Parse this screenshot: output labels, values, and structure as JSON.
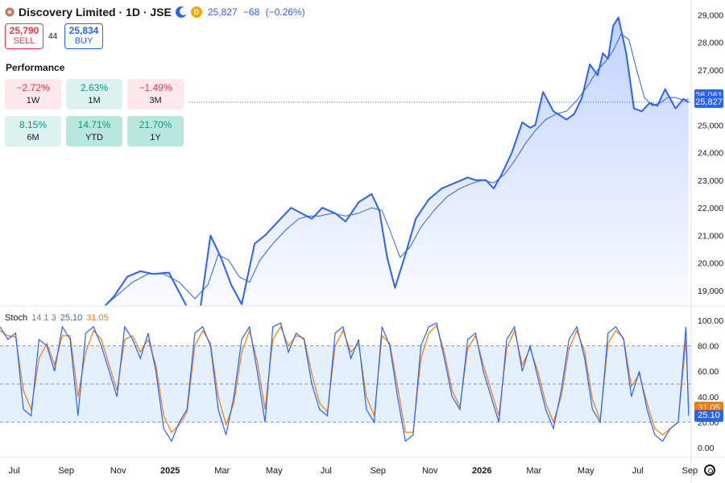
{
  "header": {
    "title": "Discovery Limited · 1D · JSE",
    "last": "25,827",
    "change": "−68",
    "change_pct": "(−0.26%)",
    "session_icon": "moon-icon",
    "dividend_badge": "D"
  },
  "trade": {
    "sell_price": "25,790",
    "sell_label": "SELL",
    "spread": "44",
    "buy_price": "25,834",
    "buy_label": "BUY"
  },
  "performance": {
    "title": "Performance",
    "items": [
      {
        "value": "−2.72%",
        "period": "1W",
        "tone": "neg"
      },
      {
        "value": "2.63%",
        "period": "1M",
        "tone": "pos"
      },
      {
        "value": "−1.49%",
        "period": "3M",
        "tone": "neg"
      },
      {
        "value": "8.15%",
        "period": "6M",
        "tone": "pos"
      },
      {
        "value": "14.71%",
        "period": "YTD",
        "tone": "pos2"
      },
      {
        "value": "21.70%",
        "period": "1Y",
        "tone": "pos2"
      }
    ]
  },
  "stoch": {
    "name": "Stoch",
    "params": "14 1 3",
    "k_value": "25.10",
    "d_value": "31.05"
  },
  "price_tags": {
    "upper": "26,061",
    "last": "25,827"
  },
  "colors": {
    "price_line": "#2962ff",
    "stoch_d": "#f57c00",
    "stoch_k": "#2962ff",
    "band": "#e3f0fd"
  },
  "chart_data": [
    {
      "type": "line",
      "y_ticks": [
        "19,000",
        "20,000",
        "21,000",
        "22,000",
        "23,000",
        "24,000",
        "25,000",
        "26,000",
        "27,000",
        "28,000",
        "29,000"
      ],
      "x_ticks": [
        "Jul",
        "Sep",
        "Nov",
        "2025",
        "Mar",
        "May",
        "Jul",
        "Sep",
        "Nov",
        "2026",
        "Mar",
        "May",
        "Jul",
        "Sep"
      ],
      "x_tick_pos": [
        0.3,
        2.3,
        4.3,
        6.3,
        8.3,
        10.3,
        12.3,
        14.3,
        16.3,
        18.3,
        20.3,
        22.3,
        24.3,
        26.3
      ],
      "ylim": [
        18500,
        29300
      ],
      "series": [
        {
          "name": "price",
          "x": [
            3.9,
            4.4,
            4.9,
            5.4,
            5.9,
            6.5,
            7.2,
            7.7,
            8.1,
            8.5,
            8.9,
            9.3,
            9.8,
            10.2,
            10.7,
            11.2,
            11.6,
            12.0,
            12.4,
            12.9,
            13.3,
            13.8,
            14.3,
            14.6,
            14.9,
            15.2,
            15.6,
            16.0,
            16.5,
            17.0,
            17.5,
            18.0,
            18.3,
            18.7,
            19.0,
            19.3,
            19.7,
            20.1,
            20.4,
            20.6,
            20.9,
            21.3,
            21.8,
            22.1,
            22.4,
            22.7,
            23.0,
            23.2,
            23.4,
            23.6,
            23.8,
            24.1,
            24.4,
            24.7,
            25.0,
            25.3,
            25.6,
            26.0,
            26.3,
            26.5
          ],
          "y": [
            18300,
            18800,
            19500,
            19700,
            19600,
            19650,
            18400,
            18300,
            21000,
            20200,
            19200,
            18500,
            20700,
            21000,
            21500,
            22000,
            21800,
            21600,
            22000,
            21800,
            21500,
            22200,
            22500,
            21900,
            20200,
            19100,
            20300,
            21600,
            22300,
            22700,
            22900,
            23100,
            23000,
            23000,
            22700,
            23200,
            24000,
            25100,
            24900,
            25000,
            26200,
            25500,
            25200,
            25400,
            26000,
            27200,
            26800,
            27600,
            27400,
            28600,
            28900,
            27600,
            25600,
            25500,
            25800,
            25700,
            26300,
            25600,
            25950,
            25827
          ]
        },
        {
          "name": "sma",
          "x": [
            4.1,
            4.6,
            5.1,
            5.7,
            6.3,
            6.9,
            7.5,
            8.0,
            8.4,
            8.8,
            9.2,
            9.6,
            10.0,
            10.5,
            11.0,
            11.5,
            11.9,
            12.3,
            12.8,
            13.3,
            13.8,
            14.3,
            14.7,
            15.0,
            15.4,
            15.8,
            16.2,
            16.7,
            17.2,
            17.7,
            18.2,
            18.6,
            19.0,
            19.4,
            19.8,
            20.2,
            20.6,
            21.0,
            21.4,
            21.8,
            22.2,
            22.6,
            23.0,
            23.3,
            23.6,
            23.9,
            24.2,
            24.5,
            24.8,
            25.1,
            25.4,
            25.7,
            26.0,
            26.3,
            26.5
          ],
          "y": [
            18500,
            18900,
            19300,
            19600,
            19600,
            19300,
            18700,
            19200,
            20300,
            20100,
            19500,
            19300,
            20100,
            20700,
            21200,
            21600,
            21700,
            21700,
            21800,
            21700,
            21800,
            22000,
            21900,
            21200,
            20200,
            20600,
            21300,
            21900,
            22400,
            22700,
            22900,
            23000,
            22900,
            23200,
            23700,
            24300,
            24800,
            25200,
            25400,
            25500,
            25900,
            26400,
            27000,
            27300,
            27700,
            28300,
            28100,
            27000,
            26000,
            25700,
            25800,
            26000,
            26000,
            25900,
            25950
          ]
        }
      ]
    },
    {
      "type": "line",
      "title": "Stoch",
      "y_ticks": [
        "0.00",
        "20.00",
        "40.00",
        "60.00",
        "80.00",
        "100.00"
      ],
      "ylim": [
        0,
        100
      ],
      "band": [
        20,
        80
      ],
      "midline": 50,
      "series": [
        {
          "name": "%K",
          "x": [
            0.0,
            0.3,
            0.6,
            0.9,
            1.2,
            1.5,
            1.8,
            2.1,
            2.4,
            2.7,
            3.0,
            3.3,
            3.6,
            3.9,
            4.2,
            4.5,
            4.8,
            5.1,
            5.4,
            5.7,
            6.0,
            6.3,
            6.6,
            6.9,
            7.2,
            7.5,
            7.8,
            8.1,
            8.4,
            8.7,
            9.0,
            9.3,
            9.6,
            9.9,
            10.2,
            10.5,
            10.8,
            11.1,
            11.4,
            11.7,
            12.0,
            12.3,
            12.6,
            12.9,
            13.2,
            13.5,
            13.8,
            14.1,
            14.4,
            14.7,
            15.0,
            15.3,
            15.6,
            15.9,
            16.2,
            16.5,
            16.8,
            17.1,
            17.4,
            17.7,
            18.0,
            18.3,
            18.6,
            18.9,
            19.2,
            19.5,
            19.8,
            20.1,
            20.4,
            20.7,
            21.0,
            21.3,
            21.6,
            21.9,
            22.2,
            22.5,
            22.8,
            23.1,
            23.4,
            23.7,
            24.0,
            24.3,
            24.6,
            24.9,
            25.2,
            25.5,
            25.8,
            26.1,
            26.4,
            26.5
          ],
          "y": [
            95,
            85,
            90,
            30,
            25,
            85,
            80,
            60,
            95,
            85,
            25,
            90,
            95,
            80,
            60,
            40,
            95,
            85,
            70,
            90,
            60,
            15,
            5,
            20,
            30,
            90,
            95,
            80,
            30,
            10,
            40,
            85,
            95,
            60,
            20,
            95,
            98,
            75,
            90,
            85,
            50,
            30,
            25,
            90,
            95,
            70,
            85,
            30,
            20,
            95,
            80,
            40,
            5,
            10,
            80,
            95,
            98,
            70,
            40,
            30,
            85,
            90,
            60,
            40,
            20,
            85,
            95,
            60,
            80,
            55,
            30,
            15,
            45,
            85,
            95,
            70,
            30,
            20,
            90,
            95,
            85,
            40,
            60,
            30,
            10,
            5,
            15,
            20,
            95,
            25.1
          ]
        },
        {
          "name": "%D",
          "x": [
            0.0,
            0.3,
            0.6,
            0.9,
            1.2,
            1.5,
            1.8,
            2.1,
            2.4,
            2.7,
            3.0,
            3.3,
            3.6,
            3.9,
            4.2,
            4.5,
            4.8,
            5.1,
            5.4,
            5.7,
            6.0,
            6.3,
            6.6,
            6.9,
            7.2,
            7.5,
            7.8,
            8.1,
            8.4,
            8.7,
            9.0,
            9.3,
            9.6,
            9.9,
            10.2,
            10.5,
            10.8,
            11.1,
            11.4,
            11.7,
            12.0,
            12.3,
            12.6,
            12.9,
            13.2,
            13.5,
            13.8,
            14.1,
            14.4,
            14.7,
            15.0,
            15.3,
            15.6,
            15.9,
            16.2,
            16.5,
            16.8,
            17.1,
            17.4,
            17.7,
            18.0,
            18.3,
            18.6,
            18.9,
            19.2,
            19.5,
            19.8,
            20.1,
            20.4,
            20.7,
            21.0,
            21.3,
            21.6,
            21.9,
            22.2,
            22.5,
            22.8,
            23.1,
            23.4,
            23.7,
            24.0,
            24.3,
            24.6,
            24.9,
            25.2,
            25.5,
            25.8,
            26.1,
            26.4,
            26.5
          ],
          "y": [
            92,
            88,
            87,
            45,
            30,
            70,
            82,
            65,
            88,
            88,
            40,
            75,
            92,
            85,
            65,
            45,
            85,
            88,
            75,
            85,
            65,
            25,
            12,
            18,
            28,
            80,
            92,
            82,
            40,
            18,
            35,
            75,
            92,
            68,
            30,
            85,
            95,
            80,
            88,
            86,
            58,
            35,
            28,
            80,
            92,
            75,
            82,
            40,
            25,
            88,
            82,
            48,
            12,
            12,
            70,
            90,
            96,
            75,
            45,
            32,
            78,
            88,
            65,
            45,
            25,
            78,
            92,
            65,
            78,
            60,
            35,
            20,
            40,
            78,
            92,
            75,
            38,
            22,
            82,
            92,
            86,
            48,
            58,
            35,
            15,
            10,
            15,
            20,
            85,
            31.05
          ]
        }
      ]
    }
  ]
}
